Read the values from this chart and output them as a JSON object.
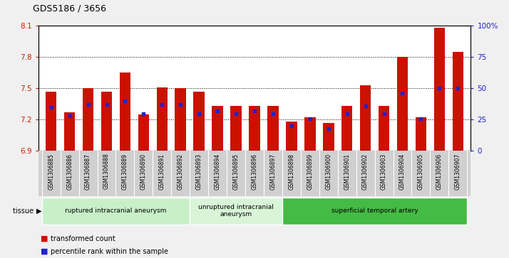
{
  "title": "GDS5186 / 3656",
  "samples": [
    "GSM1306885",
    "GSM1306886",
    "GSM1306887",
    "GSM1306888",
    "GSM1306889",
    "GSM1306890",
    "GSM1306891",
    "GSM1306892",
    "GSM1306893",
    "GSM1306894",
    "GSM1306895",
    "GSM1306896",
    "GSM1306897",
    "GSM1306898",
    "GSM1306899",
    "GSM1306900",
    "GSM1306901",
    "GSM1306902",
    "GSM1306903",
    "GSM1306904",
    "GSM1306905",
    "GSM1306906",
    "GSM1306907"
  ],
  "transformed_count": [
    7.47,
    7.27,
    7.5,
    7.47,
    7.65,
    7.25,
    7.51,
    7.5,
    7.47,
    7.33,
    7.33,
    7.33,
    7.33,
    7.18,
    7.22,
    7.17,
    7.33,
    7.53,
    7.33,
    7.8,
    7.22,
    8.08,
    7.85
  ],
  "percentile_rank": [
    35,
    28,
    37,
    37,
    40,
    30,
    37,
    37,
    30,
    32,
    30,
    32,
    30,
    20,
    26,
    18,
    30,
    36,
    30,
    46,
    26,
    50,
    50
  ],
  "groups": [
    {
      "label": "ruptured intracranial aneurysm",
      "start": 0,
      "end": 8,
      "color": "#c8f0c8"
    },
    {
      "label": "unruptured intracranial\naneurysm",
      "start": 8,
      "end": 13,
      "color": "#d8f5d8"
    },
    {
      "label": "superficial temporal artery",
      "start": 13,
      "end": 23,
      "color": "#44bb44"
    }
  ],
  "ylim_left": [
    6.9,
    8.1
  ],
  "ylim_right": [
    0,
    100
  ],
  "yticks_left": [
    6.9,
    7.2,
    7.5,
    7.8,
    8.1
  ],
  "yticks_right": [
    0,
    25,
    50,
    75,
    100
  ],
  "ytick_labels_right": [
    "0",
    "25",
    "50",
    "75",
    "100%"
  ],
  "bar_color": "#cc1100",
  "marker_color": "#2222cc",
  "plot_bg": "#ffffff",
  "fig_bg": "#f0f0f0",
  "xtick_bg": "#d0d0d0"
}
